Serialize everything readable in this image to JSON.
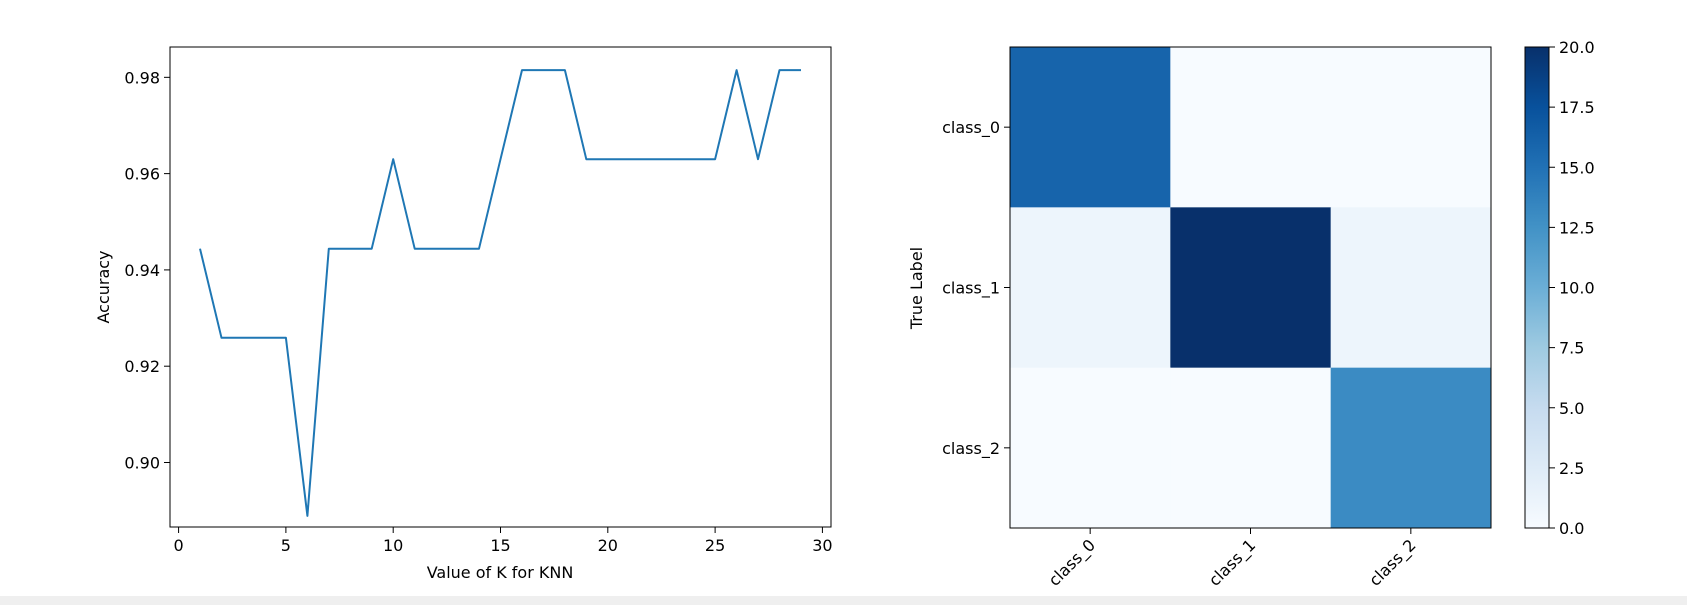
{
  "chart_data": [
    {
      "type": "line",
      "title": "",
      "xlabel": "Value of K for KNN",
      "ylabel": "Accuracy",
      "xlim": [
        -0.4,
        30.4
      ],
      "ylim": [
        0.8866,
        0.9863
      ],
      "xticks": [
        0,
        5,
        10,
        15,
        20,
        25,
        30
      ],
      "xtick_labels": [
        "0",
        "5",
        "10",
        "15",
        "20",
        "25",
        "30"
      ],
      "yticks": [
        0.9,
        0.92,
        0.94,
        0.96,
        0.98
      ],
      "ytick_labels": [
        "0.90",
        "0.92",
        "0.94",
        "0.96",
        "0.98"
      ],
      "grid": false,
      "series_color": "#1f77b4",
      "x": [
        1,
        2,
        3,
        4,
        5,
        6,
        7,
        8,
        9,
        10,
        11,
        12,
        13,
        14,
        15,
        16,
        17,
        18,
        19,
        20,
        21,
        22,
        23,
        24,
        25,
        26,
        27,
        28,
        29
      ],
      "y": [
        0.9444,
        0.9259,
        0.9259,
        0.9259,
        0.9259,
        0.8889,
        0.9444,
        0.9444,
        0.9444,
        0.963,
        0.9444,
        0.9444,
        0.9444,
        0.9444,
        0.963,
        0.9815,
        0.9815,
        0.9815,
        0.963,
        0.963,
        0.963,
        0.963,
        0.963,
        0.963,
        0.963,
        0.9815,
        0.963,
        0.9815,
        0.9815
      ]
    },
    {
      "type": "heatmap",
      "title": "",
      "ylabel": "True Label",
      "xlabel": "",
      "row_labels": [
        "class_0",
        "class_1",
        "class_2"
      ],
      "col_labels": [
        "class_0",
        "class_1",
        "class_2"
      ],
      "values": [
        [
          16,
          0,
          0
        ],
        [
          1,
          20,
          1
        ],
        [
          0,
          0,
          13
        ]
      ],
      "colormap": "Blues",
      "colorbar": {
        "min": 0.0,
        "max": 20.0,
        "ticks": [
          0.0,
          2.5,
          5.0,
          7.5,
          10.0,
          12.5,
          15.0,
          17.5,
          20.0
        ],
        "tick_labels": [
          "0.0",
          "2.5",
          "5.0",
          "7.5",
          "10.0",
          "12.5",
          "15.0",
          "17.5",
          "20.0"
        ]
      }
    }
  ]
}
